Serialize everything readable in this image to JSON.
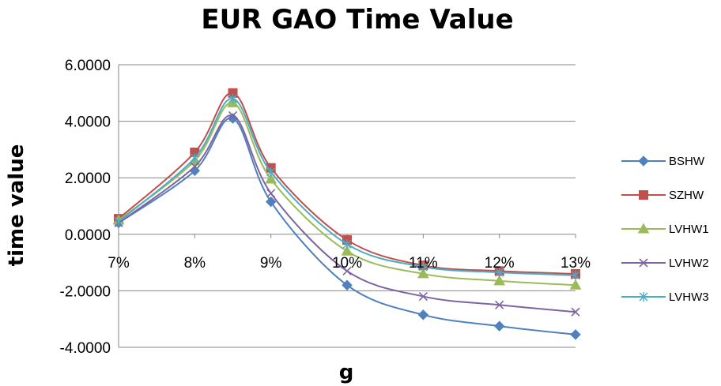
{
  "chart_data": {
    "type": "line",
    "title": "EUR GAO Time Value",
    "xlabel": "g",
    "ylabel": "time value",
    "x": [
      0.07,
      0.08,
      0.085,
      0.09,
      0.1,
      0.11,
      0.12,
      0.13
    ],
    "x_tick_values": [
      0.07,
      0.08,
      0.09,
      0.1,
      0.11,
      0.12,
      0.13
    ],
    "x_tick_labels": [
      "7%",
      "8%",
      "9%",
      "10%",
      "11%",
      "12%",
      "13%"
    ],
    "xlim": [
      0.07,
      0.13
    ],
    "ylim": [
      -4,
      6
    ],
    "y_tick_values": [
      6,
      4,
      2,
      0,
      -2,
      -4
    ],
    "y_tick_labels": [
      "6.0000",
      "4.0000",
      "2.0000",
      "0.0000",
      "-2.0000",
      "-4.0000"
    ],
    "grid": "horizontal",
    "legend_position": "right",
    "series": [
      {
        "name": "BSHW",
        "color": "#4F81BD",
        "marker": "diamond",
        "values": [
          0.4,
          2.25,
          4.1,
          1.15,
          -1.8,
          -2.85,
          -3.25,
          -3.55
        ]
      },
      {
        "name": "SZHW",
        "color": "#C0504D",
        "marker": "square",
        "values": [
          0.55,
          2.9,
          5.0,
          2.35,
          -0.2,
          -1.1,
          -1.3,
          -1.4
        ]
      },
      {
        "name": "LVHW1",
        "color": "#9BBB59",
        "marker": "triangle",
        "values": [
          0.5,
          2.6,
          4.65,
          1.95,
          -0.6,
          -1.4,
          -1.65,
          -1.8
        ]
      },
      {
        "name": "LVHW2",
        "color": "#8064A2",
        "marker": "x",
        "values": [
          0.4,
          2.4,
          4.2,
          1.45,
          -1.3,
          -2.2,
          -2.5,
          -2.75
        ]
      },
      {
        "name": "LVHW3",
        "color": "#4BACC6",
        "marker": "star",
        "values": [
          0.45,
          2.7,
          4.8,
          2.2,
          -0.35,
          -1.15,
          -1.35,
          -1.45
        ]
      }
    ]
  }
}
